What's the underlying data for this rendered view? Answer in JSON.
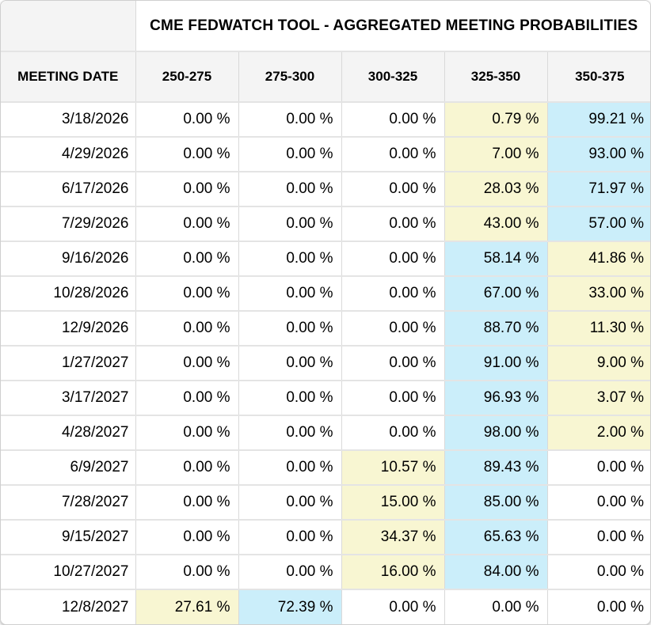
{
  "table": {
    "title": "CME FEDWATCH TOOL - AGGREGATED MEETING PROBABILITIES",
    "columns": [
      "MEETING DATE",
      "250-275",
      "275-300",
      "300-325",
      "325-350",
      "350-375"
    ],
    "rows": [
      {
        "date": "3/18/2026",
        "values": [
          "0.00 %",
          "0.00 %",
          "0.00 %",
          "0.79 %",
          "99.21 %"
        ],
        "highlights": [
          null,
          null,
          null,
          "yellow",
          "blue"
        ]
      },
      {
        "date": "4/29/2026",
        "values": [
          "0.00 %",
          "0.00 %",
          "0.00 %",
          "7.00 %",
          "93.00 %"
        ],
        "highlights": [
          null,
          null,
          null,
          "yellow",
          "blue"
        ]
      },
      {
        "date": "6/17/2026",
        "values": [
          "0.00 %",
          "0.00 %",
          "0.00 %",
          "28.03 %",
          "71.97 %"
        ],
        "highlights": [
          null,
          null,
          null,
          "yellow",
          "blue"
        ]
      },
      {
        "date": "7/29/2026",
        "values": [
          "0.00 %",
          "0.00 %",
          "0.00 %",
          "43.00 %",
          "57.00 %"
        ],
        "highlights": [
          null,
          null,
          null,
          "yellow",
          "blue"
        ]
      },
      {
        "date": "9/16/2026",
        "values": [
          "0.00 %",
          "0.00 %",
          "0.00 %",
          "58.14 %",
          "41.86 %"
        ],
        "highlights": [
          null,
          null,
          null,
          "blue",
          "yellow"
        ]
      },
      {
        "date": "10/28/2026",
        "values": [
          "0.00 %",
          "0.00 %",
          "0.00 %",
          "67.00 %",
          "33.00 %"
        ],
        "highlights": [
          null,
          null,
          null,
          "blue",
          "yellow"
        ]
      },
      {
        "date": "12/9/2026",
        "values": [
          "0.00 %",
          "0.00 %",
          "0.00 %",
          "88.70 %",
          "11.30 %"
        ],
        "highlights": [
          null,
          null,
          null,
          "blue",
          "yellow"
        ]
      },
      {
        "date": "1/27/2027",
        "values": [
          "0.00 %",
          "0.00 %",
          "0.00 %",
          "91.00 %",
          "9.00 %"
        ],
        "highlights": [
          null,
          null,
          null,
          "blue",
          "yellow"
        ]
      },
      {
        "date": "3/17/2027",
        "values": [
          "0.00 %",
          "0.00 %",
          "0.00 %",
          "96.93 %",
          "3.07 %"
        ],
        "highlights": [
          null,
          null,
          null,
          "blue",
          "yellow"
        ]
      },
      {
        "date": "4/28/2027",
        "values": [
          "0.00 %",
          "0.00 %",
          "0.00 %",
          "98.00 %",
          "2.00 %"
        ],
        "highlights": [
          null,
          null,
          null,
          "blue",
          "yellow"
        ]
      },
      {
        "date": "6/9/2027",
        "values": [
          "0.00 %",
          "0.00 %",
          "10.57 %",
          "89.43 %",
          "0.00 %"
        ],
        "highlights": [
          null,
          null,
          "yellow",
          "blue",
          null
        ]
      },
      {
        "date": "7/28/2027",
        "values": [
          "0.00 %",
          "0.00 %",
          "15.00 %",
          "85.00 %",
          "0.00 %"
        ],
        "highlights": [
          null,
          null,
          "yellow",
          "blue",
          null
        ]
      },
      {
        "date": "9/15/2027",
        "values": [
          "0.00 %",
          "0.00 %",
          "34.37 %",
          "65.63 %",
          "0.00 %"
        ],
        "highlights": [
          null,
          null,
          "yellow",
          "blue",
          null
        ]
      },
      {
        "date": "10/27/2027",
        "values": [
          "0.00 %",
          "0.00 %",
          "16.00 %",
          "84.00 %",
          "0.00 %"
        ],
        "highlights": [
          null,
          null,
          "yellow",
          "blue",
          null
        ]
      },
      {
        "date": "12/8/2027",
        "values": [
          "27.61 %",
          "72.39 %",
          "0.00 %",
          "0.00 %",
          "0.00 %"
        ],
        "highlights": [
          "yellow",
          "blue",
          null,
          null,
          null
        ]
      }
    ]
  },
  "colors": {
    "highlight_yellow": "#F8F6D2",
    "highlight_blue": "#CBEEFA",
    "header_bg": "#F4F4F4"
  },
  "chart_data": {
    "type": "table",
    "title": "CME FEDWATCH TOOL - AGGREGATED MEETING PROBABILITIES",
    "columns": [
      "MEETING DATE",
      "250-275",
      "275-300",
      "300-325",
      "325-350",
      "350-375"
    ],
    "units": "%",
    "rows": [
      [
        "3/18/2026",
        0.0,
        0.0,
        0.0,
        0.79,
        99.21
      ],
      [
        "4/29/2026",
        0.0,
        0.0,
        0.0,
        7.0,
        93.0
      ],
      [
        "6/17/2026",
        0.0,
        0.0,
        0.0,
        28.03,
        71.97
      ],
      [
        "7/29/2026",
        0.0,
        0.0,
        0.0,
        43.0,
        57.0
      ],
      [
        "9/16/2026",
        0.0,
        0.0,
        0.0,
        58.14,
        41.86
      ],
      [
        "10/28/2026",
        0.0,
        0.0,
        0.0,
        67.0,
        33.0
      ],
      [
        "12/9/2026",
        0.0,
        0.0,
        0.0,
        88.7,
        11.3
      ],
      [
        "1/27/2027",
        0.0,
        0.0,
        0.0,
        91.0,
        9.0
      ],
      [
        "3/17/2027",
        0.0,
        0.0,
        0.0,
        96.93,
        3.07
      ],
      [
        "4/28/2027",
        0.0,
        0.0,
        0.0,
        98.0,
        2.0
      ],
      [
        "6/9/2027",
        0.0,
        0.0,
        10.57,
        89.43,
        0.0
      ],
      [
        "7/28/2027",
        0.0,
        0.0,
        15.0,
        85.0,
        0.0
      ],
      [
        "9/15/2027",
        0.0,
        0.0,
        34.37,
        65.63,
        0.0
      ],
      [
        "10/27/2027",
        0.0,
        0.0,
        16.0,
        84.0,
        0.0
      ],
      [
        "12/8/2027",
        27.61,
        72.39,
        0.0,
        0.0,
        0.0
      ]
    ],
    "highlight_rule": "blue = highest probability in row, yellow = second-highest non-zero probability"
  }
}
